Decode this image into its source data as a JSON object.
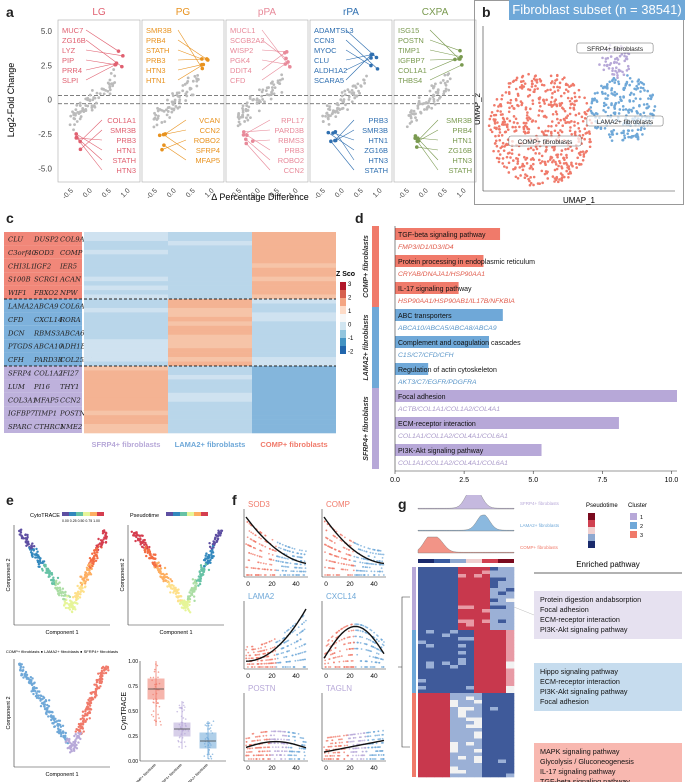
{
  "panel_letters": {
    "a": "a",
    "b": "b",
    "c": "c",
    "d": "d",
    "e": "e",
    "f": "f",
    "g": "g"
  },
  "colors": {
    "comp": "#f07a6a",
    "lama2": "#6fa8d8",
    "sfrp4": "#b7a8d8",
    "lg": "#e06070",
    "pg": "#e8921e",
    "ppa": "#e88a9a",
    "rpa": "#2f6fb0",
    "cxpa": "#7a9a50"
  },
  "panel_a": {
    "ylabel": "Log2-Fold Change",
    "xlabel": "Δ Percentage Difference",
    "yticks": [
      "5.0",
      "2.5",
      "0",
      "-2.5",
      "-5.0"
    ],
    "xticks": [
      "-0.5",
      "0.0",
      "0.5",
      "1.0"
    ],
    "facets": [
      {
        "title": "LG",
        "up": [
          "MUC7",
          "ZG16B",
          "LYZ",
          "PIP",
          "PRR4",
          "SLPI"
        ],
        "down": [
          "COL1A1",
          "SMR3B",
          "PRB3",
          "HTN1",
          "STATH",
          "HTN3"
        ]
      },
      {
        "title": "PG",
        "up": [
          "SMR3B",
          "PRB4",
          "STATH",
          "PRB3",
          "HTN3",
          "HTN1"
        ],
        "down": [
          "VCAN",
          "CCN2",
          "ROBO2",
          "SFRP4",
          "MFAP5"
        ]
      },
      {
        "title": "pPA",
        "up": [
          "MUCL1",
          "SCGB2A2",
          "WISP2",
          "PGK4",
          "DDIT4",
          "CFD"
        ],
        "down": [
          "RPL17",
          "PARD3B",
          "RBMS3",
          "PRB3",
          "ROBO2",
          "CCN2"
        ]
      },
      {
        "title": "rPA",
        "up": [
          "ADAMTSL3",
          "CCN3",
          "MYOC",
          "CLU",
          "ALDH1A2",
          "SCARA5"
        ],
        "down": [
          "PRB3",
          "SMR3B",
          "HTN1",
          "ZG16B",
          "HTN3",
          "STATH"
        ]
      },
      {
        "title": "CXPA",
        "up": [
          "ISG15",
          "POSTN",
          "TIMP1",
          "IGFBP7",
          "COL1A1",
          "THBS4"
        ],
        "down": [
          "SMR3B",
          "PRB4",
          "HTN1",
          "ZG16B",
          "HTN3",
          "STATH"
        ]
      }
    ]
  },
  "panel_b": {
    "title": "Fibroblast subset (n = 38541)",
    "xlabel": "UMAP_1",
    "ylabel": "UMAP_2",
    "labels": {
      "comp": "COMP+ fibroblasts",
      "lama2": "LAMA2+ fibroblasts",
      "sfrp4": "SFRP4+ fibroblasts"
    }
  },
  "panel_c": {
    "genes": [
      [
        "CLU",
        "DUSP2",
        "COL9A2"
      ],
      [
        "C3orf40",
        "SOD3",
        "COMP"
      ],
      [
        "CHI3L1",
        "IGF2",
        "IER5"
      ],
      [
        "S100B",
        "SCRG1",
        "ACAN"
      ],
      [
        "WIF1",
        "FBXO2",
        "NPW"
      ],
      [
        "LAMA2",
        "ABCA9",
        "COL6A3"
      ],
      [
        "CFD",
        "CXCL14",
        "RORA"
      ],
      [
        "DCN",
        "RBMS3",
        "ABCA6"
      ],
      [
        "PTGDS",
        "ABCA10",
        "ADH1B"
      ],
      [
        "CFH",
        "PARD3B",
        "COL25A1"
      ],
      [
        "SFRP4",
        "COL1A2",
        "IFI27"
      ],
      [
        "LUM",
        "PI16",
        "THY1"
      ],
      [
        "COL3A1",
        "MFAP5",
        "CCN2"
      ],
      [
        "IGFBP7",
        "TIMP1",
        "POSTN"
      ],
      [
        "SPARC",
        "CTHRC1",
        "NME2"
      ]
    ],
    "columns": [
      "SFRP4+ fibroblasts",
      "LAMA2+ fibroblasts",
      "COMP+ fibroblasts"
    ],
    "legend_title": "Z Score",
    "legend_ticks": [
      "3",
      "2",
      "1",
      "0",
      "-1",
      "-2"
    ]
  },
  "panel_d": {
    "xlabel": "-log10(pvalue)",
    "xticks": [
      "0.0",
      "2.5",
      "5.0",
      "7.5",
      "10.0"
    ],
    "groups": [
      "COMP+ fibroblasts",
      "LAMA2+ fibroblasts",
      "SFRP4+ fibroblasts"
    ],
    "bars": [
      {
        "name": "TGF-beta signaling pathway",
        "genes": "FMP3/ID1/ID3/ID4",
        "value": 3.8,
        "group": "comp"
      },
      {
        "name": "Protein processing in endoplasmic reticulum",
        "genes": "CRYAB/DNAJA1/HSP90AA1",
        "value": 3.2,
        "group": "comp"
      },
      {
        "name": "IL-17 signaling pathway",
        "genes": "HSP90AA1/HSP90AB1/IL17B/NFKBIA",
        "value": 2.3,
        "group": "comp"
      },
      {
        "name": "ABC transporters",
        "genes": "ABCA10/ABCA5/ABCA8/ABCA9",
        "value": 3.9,
        "group": "lama2"
      },
      {
        "name": "Complement and coagulation cascades",
        "genes": "C1S/C7/CFD/CFH",
        "value": 3.4,
        "group": "lama2"
      },
      {
        "name": "Regulation of actin cytoskeleton",
        "genes": "AKT3/C7/EGFR/PDGFRA",
        "value": 1.2,
        "group": "lama2"
      },
      {
        "name": "Focal adhesion",
        "genes": "ACTB/COL1A1/COL1A2/COL4A1",
        "value": 10.2,
        "group": "sfrp4"
      },
      {
        "name": "ECM-receptor interaction",
        "genes": "COL1A1/COL1A2/COL4A1/COL6A1",
        "value": 8.1,
        "group": "sfrp4"
      },
      {
        "name": "PI3K-Akt signaling pathway",
        "genes": "COL1A1/COL1A2/COL4A1/COL6A1",
        "value": 5.3,
        "group": "sfrp4"
      }
    ]
  },
  "panel_e": {
    "cytotrace_label": "CytoTRACE",
    "cytotrace_ticks": "0.00 0.25 0.50 0.75 1.00",
    "pseudotime_label": "Pseudotime",
    "xlabel": "Component 1",
    "ylabel": "Component 2",
    "legend": "COMP+ fibroblasts ● LAMA2+ fibroblasts ● SFRP4+ fibroblasts",
    "box_ylabel": "CytoTRACE",
    "box_groups": [
      "COMP+ fibroblasts",
      "SFRP4+ fibroblasts",
      "LAMA2+ fibroblasts"
    ]
  },
  "panel_f": {
    "genes": [
      {
        "name": "SOD3",
        "color": "comp"
      },
      {
        "name": "COMP",
        "color": "comp"
      },
      {
        "name": "LAMA2",
        "color": "lama2"
      },
      {
        "name": "CXCL14",
        "color": "lama2"
      },
      {
        "name": "POSTN",
        "color": "sfrp4"
      },
      {
        "name": "TAGLN",
        "color": "sfrp4"
      }
    ],
    "xticks": [
      "0",
      "20",
      "40"
    ]
  },
  "panel_g": {
    "density_labels": [
      "SFRP4+ fibroblasts",
      "LAMA2+ fibroblasts",
      "COMP+ fibroblasts"
    ],
    "pseudotime_label": "Pseudotime",
    "cluster_label": "Cluster",
    "cluster_ids": [
      "1",
      "2",
      "3"
    ],
    "enriched_title": "Enriched pathway",
    "pathway_boxes": [
      [
        "Protein digestion andabsorption",
        "Focal adhesion",
        "ECM-receptor interaction",
        "PI3K-Akt signaling pathway"
      ],
      [
        "Hippo signaling pathway",
        "ECM-receptor interaction",
        "PI3K-Akt signaling pathway",
        "Focal adhesion"
      ],
      [
        "MAPK signaling pathway",
        "Glycolysis / Gluconeogenesis",
        "IL-17 signaling pathway",
        "TGF-beta signaling pathway"
      ]
    ]
  }
}
